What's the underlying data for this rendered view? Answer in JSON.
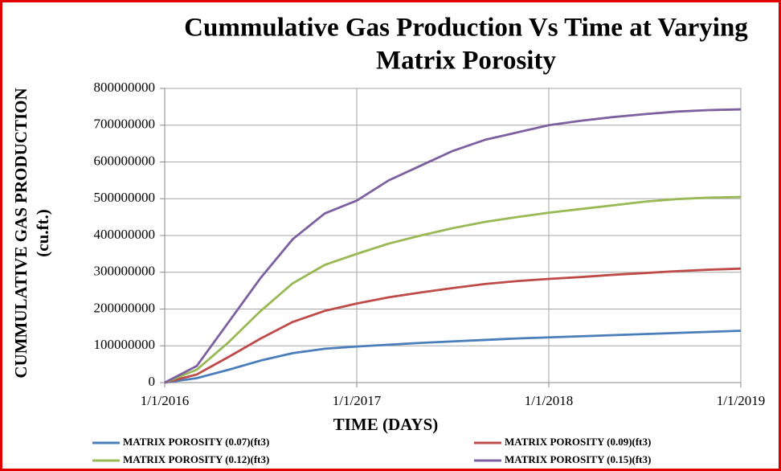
{
  "chart_data": {
    "type": "line",
    "title": [
      "Cummulative Gas Production Vs Time at Varying",
      "Matrix Porosity"
    ],
    "x_label": "TIME  (DAYS)",
    "y_label": [
      "CUMMULATIVE  GAS PRODUCTION",
      "(cu.ft.)"
    ],
    "categories": [
      "1/1/2016",
      null,
      null,
      null,
      null,
      null,
      "1/1/2017",
      null,
      null,
      null,
      null,
      null,
      "1/1/2018",
      null,
      null,
      null,
      null,
      null,
      "1/1/2019"
    ],
    "series": [
      {
        "name": "MATRIX POROSITY (0.07)(ft3)",
        "color": "#4a7ebb",
        "values": [
          0,
          12000000,
          35000000,
          60000000,
          80000000,
          92000000,
          98000000,
          103000000,
          108000000,
          112000000,
          116000000,
          120000000,
          123000000,
          126000000,
          129000000,
          132000000,
          135000000,
          138000000,
          141000000
        ]
      },
      {
        "name": "MATRIX POROSITY (0.09)(ft3)",
        "color": "#be4b48",
        "values": [
          0,
          22000000,
          70000000,
          120000000,
          165000000,
          195000000,
          215000000,
          232000000,
          245000000,
          257000000,
          268000000,
          276000000,
          282000000,
          287000000,
          293000000,
          298000000,
          303000000,
          307000000,
          310000000
        ]
      },
      {
        "name": "MATRIX POROSITY (0.12)(ft3)",
        "color": "#98b954",
        "values": [
          0,
          35000000,
          110000000,
          195000000,
          270000000,
          320000000,
          350000000,
          378000000,
          400000000,
          420000000,
          437000000,
          450000000,
          462000000,
          472000000,
          482000000,
          492000000,
          499000000,
          503000000,
          505000000
        ]
      },
      {
        "name": "MATRIX POROSITY (0.15)(ft3)",
        "color": "#7d60a0",
        "values": [
          0,
          45000000,
          165000000,
          285000000,
          390000000,
          460000000,
          495000000,
          550000000,
          590000000,
          630000000,
          660000000,
          680000000,
          700000000,
          712000000,
          722000000,
          730000000,
          737000000,
          741000000,
          743000000
        ]
      }
    ],
    "ylim": [
      0,
      800000000
    ],
    "yticks": [
      0,
      100000000,
      200000000,
      300000000,
      400000000,
      500000000,
      600000000,
      700000000,
      800000000
    ],
    "grid": true
  }
}
